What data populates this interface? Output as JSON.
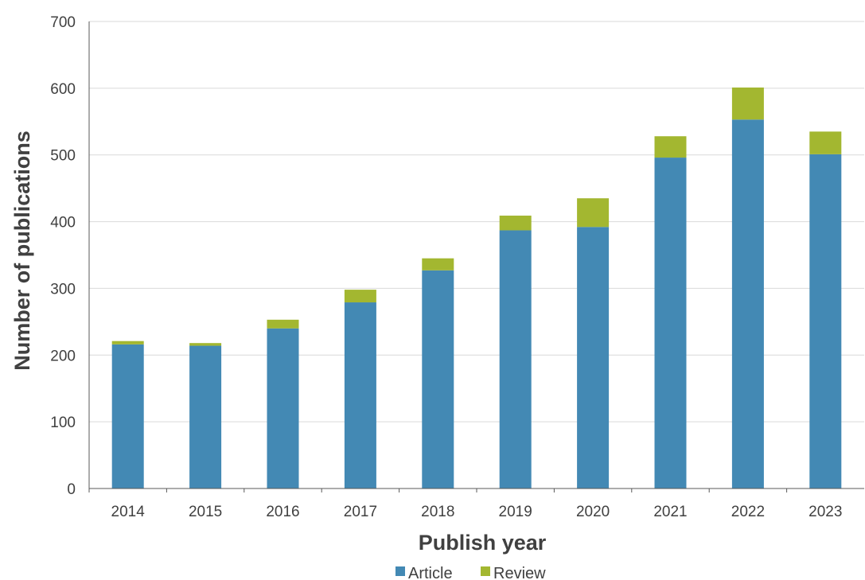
{
  "chart_data": {
    "type": "bar",
    "stacked": true,
    "categories": [
      "2014",
      "2015",
      "2016",
      "2017",
      "2018",
      "2019",
      "2020",
      "2021",
      "2022",
      "2023"
    ],
    "series": [
      {
        "name": "Article",
        "color": "#4389B4",
        "values": [
          216,
          214,
          240,
          279,
          327,
          387,
          392,
          496,
          553,
          501
        ]
      },
      {
        "name": "Review",
        "color": "#A3B730",
        "values": [
          5,
          4,
          13,
          19,
          18,
          22,
          43,
          32,
          48,
          34
        ]
      }
    ],
    "xlabel": "Publish year",
    "ylabel": "Number of publications",
    "ylim": [
      0,
      700
    ],
    "yticks": [
      "0",
      "100",
      "200",
      "300",
      "400",
      "500",
      "600",
      "700"
    ],
    "grid": true,
    "legend_position": "bottom",
    "colors": {
      "grid": "#D9D9D9",
      "axis": "#595959",
      "text": "#404040"
    }
  }
}
